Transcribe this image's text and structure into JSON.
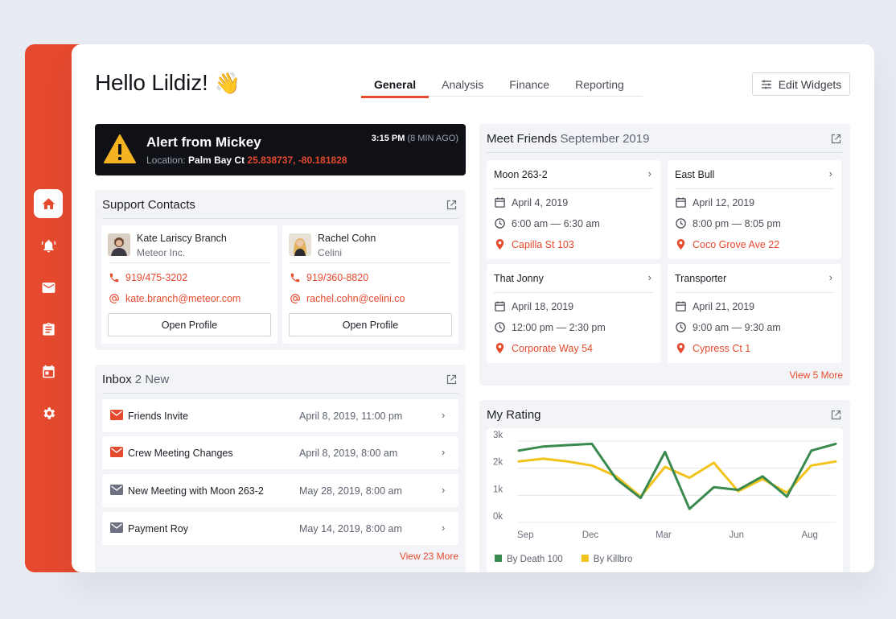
{
  "greeting": {
    "text": "Hello Lildiz!",
    "emoji": "👋"
  },
  "tabs": [
    {
      "label": "General",
      "active": true
    },
    {
      "label": "Analysis",
      "active": false
    },
    {
      "label": "Finance",
      "active": false
    },
    {
      "label": "Reporting",
      "active": false
    }
  ],
  "edit_widgets": {
    "label": "Edit Widgets"
  },
  "sidebar": {
    "items": [
      {
        "icon": "home-icon",
        "active": true
      },
      {
        "icon": "bell-alarm-icon",
        "active": false
      },
      {
        "icon": "mail-icon",
        "active": false
      },
      {
        "icon": "clipboard-icon",
        "active": false
      },
      {
        "icon": "calendar-icon",
        "active": false
      },
      {
        "icon": "gear-icon",
        "active": false
      }
    ]
  },
  "alert": {
    "title": "Alert from Mickey",
    "location_label": "Location:",
    "location_name": "Palm Bay Ct",
    "coordinates": "25.838737, -80.181828",
    "time": "3:15 PM",
    "ago": "(8 MIN AGO)"
  },
  "support": {
    "title": "Support Contacts",
    "contacts": [
      {
        "name": "Kate Lariscy Branch",
        "org": "Meteor Inc.",
        "phone": "919/475-3202",
        "email": "kate.branch@meteor.com",
        "button": "Open Profile"
      },
      {
        "name": "Rachel Cohn",
        "org": "Celini",
        "phone": "919/360-8820",
        "email": "rachel.cohn@celini.co",
        "button": "Open Profile"
      }
    ]
  },
  "inbox": {
    "title": "Inbox",
    "count": "2 New",
    "messages": [
      {
        "subject": "Friends Invite",
        "date": "April 8, 2019, 11:00 pm",
        "unread": true
      },
      {
        "subject": "Crew Meeting Changes",
        "date": "April 8, 2019, 8:00 am",
        "unread": true
      },
      {
        "subject": "New Meeting with Moon 263-2",
        "date": "May 28, 2019, 8:00 am",
        "unread": false
      },
      {
        "subject": "Payment Roy",
        "date": "May 14, 2019, 8:00 am",
        "unread": false
      }
    ],
    "view_more": "View 23 More"
  },
  "friends": {
    "title": "Meet Friends",
    "period": "September 2019",
    "meetings": [
      {
        "name": "Moon 263-2",
        "date": "April 4, 2019",
        "time": "6:00 am — 6:30 am",
        "place": "Capilla St 103"
      },
      {
        "name": "East Bull",
        "date": "April 12, 2019",
        "time": "8:00 pm — 8:05 pm",
        "place": "Coco Grove Ave 22"
      },
      {
        "name": "That Jonny",
        "date": "April 18, 2019",
        "time": "12:00 pm — 2:30 pm",
        "place": "Corporate Way 54"
      },
      {
        "name": "Transporter",
        "date": "April 21, 2019",
        "time": "9:00 am — 9:30 am",
        "place": "Cypress Ct 1"
      }
    ],
    "view_more": "View 5 More"
  },
  "rating": {
    "title": "My Rating"
  },
  "chart_data": {
    "type": "line",
    "x": [
      "Sep",
      "",
      "",
      "Dec",
      "",
      "",
      "Mar",
      "",
      "",
      "Jun",
      "",
      "",
      "Aug",
      ""
    ],
    "xtick_labels": [
      "Sep",
      "Dec",
      "Mar",
      "Jun",
      "Aug"
    ],
    "yticks": [
      "0k",
      "1k",
      "2k",
      "3k"
    ],
    "ylim": [
      0,
      3000
    ],
    "grid": true,
    "legend_position": "bottom",
    "series": [
      {
        "name": "By Death 100",
        "color": "#3a8a4f",
        "values": [
          2650,
          2800,
          2850,
          2900,
          1600,
          900,
          2600,
          500,
          1300,
          1200,
          1700,
          950,
          2650,
          2900
        ]
      },
      {
        "name": "By Killbro",
        "color": "#f2c31b",
        "values": [
          2250,
          2350,
          2250,
          2100,
          1700,
          950,
          2050,
          1650,
          2200,
          1150,
          1600,
          1100,
          2100,
          2250
        ]
      }
    ]
  }
}
